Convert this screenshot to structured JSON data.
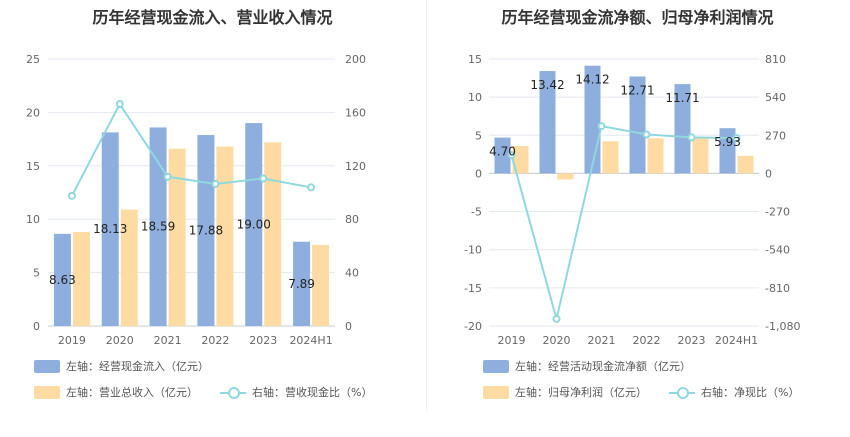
{
  "chart_data": [
    {
      "type": "bar",
      "title": "历年经营现金流入、营业收入情况",
      "categories": [
        "2019",
        "2020",
        "2021",
        "2022",
        "2023",
        "2024H1"
      ],
      "left_axis": {
        "ticks": [
          "0",
          "5",
          "10",
          "15",
          "20",
          "25"
        ],
        "ylim": [
          0,
          25
        ]
      },
      "right_axis": {
        "ticks": [
          "0",
          "40",
          "80",
          "120",
          "160",
          "200"
        ],
        "ylim": [
          0,
          200
        ]
      },
      "series": [
        {
          "name": "左轴：经营现金流入（亿元）",
          "axis": "left",
          "kind": "bar",
          "color": "#8eaede",
          "values": [
            8.63,
            18.13,
            18.59,
            17.88,
            19.0,
            7.89
          ],
          "labels": [
            "8.63",
            "18.13",
            "18.59",
            "17.88",
            "19.00",
            "7.89"
          ]
        },
        {
          "name": "左轴：营业总收入（亿元）",
          "axis": "left",
          "kind": "bar",
          "color": "#fedba2",
          "values": [
            8.8,
            10.9,
            16.6,
            16.8,
            17.2,
            7.6
          ]
        },
        {
          "name": "右轴：营收现金比（%）",
          "axis": "right",
          "kind": "line",
          "color": "#8fd8de",
          "values": [
            97.5,
            166.3,
            111.8,
            106.4,
            110.5,
            103.8
          ]
        }
      ],
      "grid": true,
      "legend_position": "bottom"
    },
    {
      "type": "bar",
      "title": "历年经营现金流净额、归母净利润情况",
      "categories": [
        "2019",
        "2020",
        "2021",
        "2022",
        "2023",
        "2024H1"
      ],
      "left_axis": {
        "ticks": [
          "-20",
          "-15",
          "-10",
          "-5",
          "0",
          "5",
          "10",
          "15"
        ],
        "ylim": [
          -20,
          15
        ]
      },
      "right_axis": {
        "ticks": [
          "-1,080",
          "-810",
          "-540",
          "-270",
          "0",
          "270",
          "540",
          "810"
        ],
        "ylim": [
          -1080,
          810
        ]
      },
      "series": [
        {
          "name": "左轴：经营活动现金流净额（亿元）",
          "axis": "left",
          "kind": "bar",
          "color": "#8eaede",
          "values": [
            4.7,
            13.42,
            14.12,
            12.71,
            11.71,
            5.93
          ],
          "labels": [
            "4.70",
            "13.42",
            "14.12",
            "12.71",
            "11.71",
            "5.93"
          ]
        },
        {
          "name": "左轴：归母净利润（亿元）",
          "axis": "left",
          "kind": "bar",
          "color": "#fedba2",
          "values": [
            3.6,
            -0.8,
            4.2,
            4.6,
            4.6,
            2.3
          ]
        },
        {
          "name": "右轴：净现比（%）",
          "axis": "right",
          "kind": "line",
          "color": "#8fd8de",
          "values": [
            130,
            -1030,
            335,
            276,
            255,
            250
          ]
        }
      ],
      "grid": true,
      "legend_position": "bottom"
    }
  ]
}
